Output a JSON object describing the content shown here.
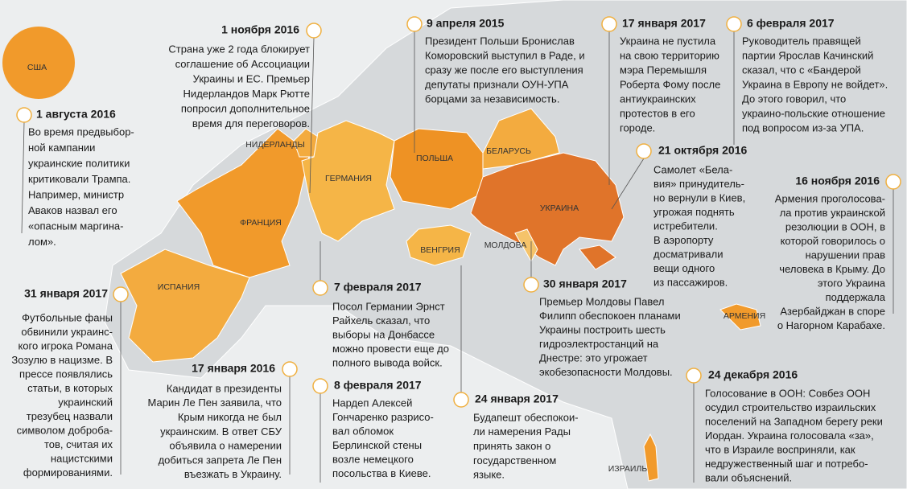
{
  "usa": "США",
  "countries": [
    "НИДЕРЛАНДЫ",
    "ГЕРМАНИЯ",
    "ПОЛЬША",
    "БЕЛАРУСЬ",
    "УКРАИНА",
    "ФРАНЦИЯ",
    "ИСПАНИЯ",
    "ВЕНГРИЯ",
    "МОЛДОВА",
    "АРМЕНИЯ",
    "ИЗРАИЛЬ"
  ],
  "events": [
    {
      "date": "1 августа 2016",
      "lines": [
        "Во время предвыбор-",
        "ной кампании",
        "украинские политики",
        "критиковали Трампа.",
        "Например, министр",
        "Аваков назвал его",
        "«опасным маргина-",
        "лом»."
      ]
    },
    {
      "date": "1 ноября 2016",
      "lines": [
        "Страна уже 2 года блокирует",
        "соглашение об Ассоциации",
        "Украины и ЕС. Премьер",
        "Нидерландов Марк Рютте",
        "попросил дополнительное",
        "время для переговоров."
      ]
    },
    {
      "date": "9 апреля 2015",
      "lines": [
        "Президент Польши Бронислав",
        "Коморовский выступил в Раде, и",
        "сразу же после его выступления",
        "депутаты признали ОУН-УПА",
        "борцами за независимость."
      ]
    },
    {
      "date": "17 января 2017",
      "lines": [
        "Украина не пустила",
        "на свою территорию",
        "мэра Перемышля",
        "Роберта Фому после",
        "антиукраинских",
        "протестов в его",
        "городе."
      ]
    },
    {
      "date": "6 февраля 2017",
      "lines": [
        "Руководитель правящей",
        "партии Ярослав Качинский",
        "сказал, что с «Бандерой",
        "Украина в Европу не войдет».",
        "До этого говорил, что",
        "украино-польские отношение",
        "под вопросом из-за УПА."
      ]
    },
    {
      "date": "21 октября 2016",
      "lines": [
        "Самолет «Бела-",
        "вия» принудитель-",
        "но вернули в Киев,",
        "угрожая поднять",
        "истребители.",
        "В аэропорту",
        "досматривали",
        "вещи одного",
        "из пассажиров."
      ]
    },
    {
      "date": "16 ноября 2016",
      "lines": [
        "Армения проголосова-",
        "ла против украинской",
        "резолюции в ООН, в",
        "которой говорилось о",
        "нарушении прав",
        "человека в Крыму. До",
        "этого Украина",
        "поддержала",
        "Азербайджан в споре",
        "о Нагорном Карабахе."
      ]
    },
    {
      "date": "31 января 2017",
      "lines": [
        "Футбольные фаны",
        "обвинили украинс-",
        "кого игрока Романа",
        "Зозулю в нацизме. В",
        "прессе появлялись",
        "статьи, в которых",
        "украинский",
        "трезубец назвали",
        "символом доброба-",
        "тов, считая их",
        "нацистскими",
        "формированиями."
      ]
    },
    {
      "date": "7 февраля 2017",
      "lines": [
        "Посол Германии Эрнст",
        "Райхель сказал, что",
        "выборы на Донбассе",
        "можно провести еще до",
        "полного вывода войск."
      ]
    },
    {
      "date": "30 января 2017",
      "lines": [
        "Премьер Молдовы Павел",
        "Филипп обеспокоен планами",
        "Украины построить шесть",
        "гидроэлектростанций на",
        "Днестре: это угрожает",
        "экобезопасности Молдовы."
      ]
    },
    {
      "date": "17 января 2016",
      "lines": [
        "Кандидат в президенты",
        "Марин Ле Пен заявила, что",
        "Крым никогда не был",
        "украинским. В ответ СБУ",
        "объявила о намерении",
        "добиться запрета Ле Пен",
        "въезжать в Украину."
      ]
    },
    {
      "date": "8 февраля 2017",
      "lines": [
        "Нардеп Алексей",
        "Гончаренко разрисо-",
        "вал обломок",
        "Берлинской стены",
        "возле немецкого",
        "посольства в Киеве."
      ]
    },
    {
      "date": "24 января 2017",
      "lines": [
        "Будапешт обеспокои-",
        "ли намерения Рады",
        "принять закон о",
        "государственном",
        "языке."
      ]
    },
    {
      "date": "24 декабря 2016",
      "lines": [
        "Голосование в ООН: Совбез ООН",
        "осудил строительство израильских",
        "поселений на Западном берегу реки",
        "Иордан. Украина голосовала «за»,",
        "что в Израиле восприняли, как",
        "недружественный шаг и потребо-",
        "вали объяснений."
      ]
    }
  ]
}
